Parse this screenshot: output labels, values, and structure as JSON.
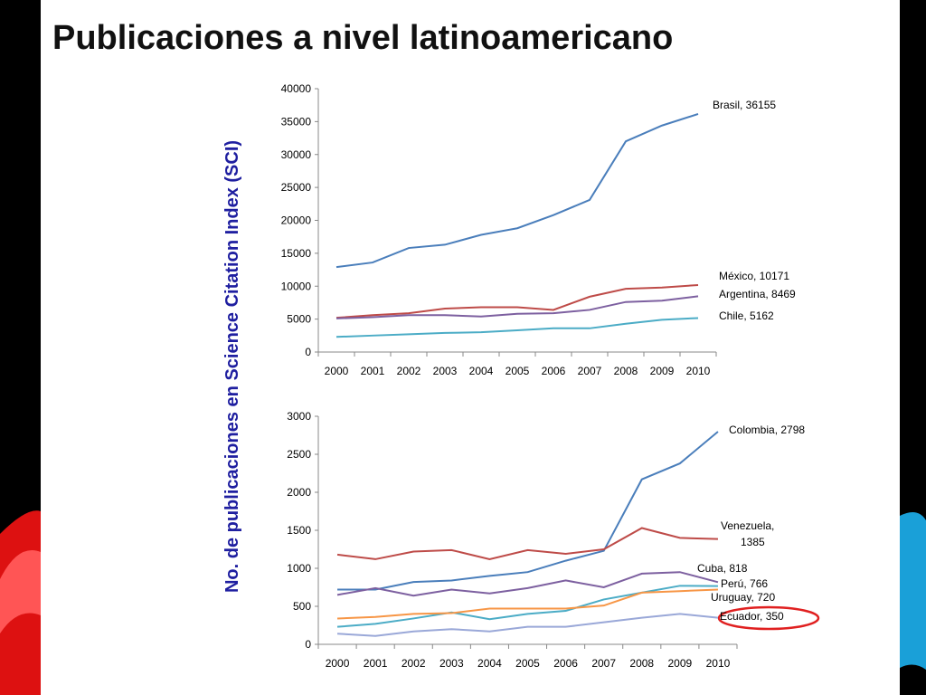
{
  "title": "Publicaciones a nivel latinoamericano",
  "ylabel": "No. de publicaciones en Science Citation Index (SCI)",
  "chart_data": [
    {
      "type": "line",
      "categories": [
        "2000",
        "2001",
        "2002",
        "2003",
        "2004",
        "2005",
        "2006",
        "2007",
        "2008",
        "2009",
        "2010"
      ],
      "ylim": [
        0,
        40000
      ],
      "yticks": [
        0,
        5000,
        10000,
        15000,
        20000,
        25000,
        30000,
        35000,
        40000
      ],
      "series": [
        {
          "name": "Brasil",
          "color": "#4a7ebb",
          "label": [
            "Brasil, 36155"
          ],
          "values": [
            12900,
            13600,
            15800,
            16300,
            17800,
            18800,
            20800,
            23100,
            32000,
            34400,
            36155
          ]
        },
        {
          "name": "México",
          "color": "#be4b48",
          "label": [
            "México, 10171"
          ],
          "values": [
            5200,
            5600,
            5900,
            6600,
            6800,
            6800,
            6400,
            8400,
            9600,
            9800,
            10171
          ]
        },
        {
          "name": "Argentina",
          "color": "#7d60a0",
          "label": [
            "Argentina, 8469"
          ],
          "values": [
            5100,
            5300,
            5600,
            5600,
            5400,
            5800,
            5900,
            6400,
            7600,
            7800,
            8469
          ]
        },
        {
          "name": "Chile",
          "color": "#4bacc6",
          "label": [
            "Chile, 5162"
          ],
          "values": [
            2300,
            2500,
            2700,
            2900,
            3000,
            3300,
            3600,
            3600,
            4300,
            4900,
            5162
          ]
        }
      ]
    },
    {
      "type": "line",
      "categories": [
        "2000",
        "2001",
        "2002",
        "2003",
        "2004",
        "2005",
        "2006",
        "2007",
        "2008",
        "2009",
        "2010"
      ],
      "ylim": [
        0,
        3000
      ],
      "yticks": [
        0,
        500,
        1000,
        1500,
        2000,
        2500,
        3000
      ],
      "series": [
        {
          "name": "Colombia",
          "color": "#4a7ebb",
          "label": [
            "Colombia, 2798"
          ],
          "values": [
            720,
            720,
            820,
            840,
            900,
            950,
            1100,
            1230,
            2170,
            2380,
            2798
          ]
        },
        {
          "name": "Venezuela",
          "color": "#be4b48",
          "label": [
            "Venezuela,",
            "1385"
          ],
          "values": [
            1180,
            1120,
            1220,
            1240,
            1120,
            1240,
            1190,
            1250,
            1530,
            1400,
            1385
          ]
        },
        {
          "name": "Cuba",
          "color": "#7d60a0",
          "label": [
            "Cuba, 818"
          ],
          "values": [
            650,
            740,
            640,
            720,
            670,
            740,
            840,
            750,
            930,
            950,
            818
          ]
        },
        {
          "name": "Perú",
          "color": "#4bacc6",
          "label": [
            "Perú, 766"
          ],
          "values": [
            230,
            270,
            340,
            420,
            330,
            400,
            440,
            590,
            680,
            770,
            766
          ]
        },
        {
          "name": "Uruguay",
          "color": "#f79646",
          "label": [
            "Uruguay, 720"
          ],
          "values": [
            340,
            360,
            400,
            410,
            470,
            470,
            470,
            510,
            680,
            700,
            720
          ]
        },
        {
          "name": "Ecuador",
          "color": "#9aa8d8",
          "label": [
            "Ecuador, 350"
          ],
          "values": [
            140,
            110,
            170,
            200,
            170,
            230,
            230,
            290,
            350,
            400,
            350
          ]
        }
      ]
    }
  ]
}
